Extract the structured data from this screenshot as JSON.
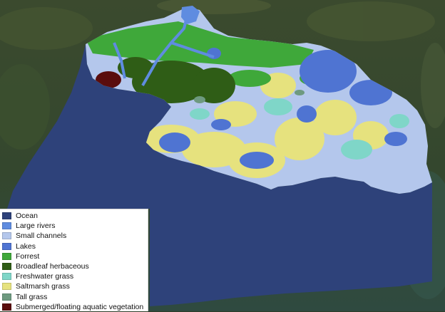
{
  "legend": {
    "items": [
      {
        "label": "Ocean",
        "color": "#2e427a"
      },
      {
        "label": "Large rivers",
        "color": "#5f8ce0"
      },
      {
        "label": "Small channels",
        "color": "#b4c7ec"
      },
      {
        "label": "Lakes",
        "color": "#4f74d2"
      },
      {
        "label": "Forrest",
        "color": "#3fa83a"
      },
      {
        "label": "Broadleaf herbaceous",
        "color": "#2f5d16"
      },
      {
        "label": "Freshwater grass",
        "color": "#7fd6c8"
      },
      {
        "label": "Saltmarsh grass",
        "color": "#e6e27e"
      },
      {
        "label": "Tall grass",
        "color": "#6e9a80"
      },
      {
        "label": "Submerged/floating aquatic vegetation",
        "color": "#5a0d0d"
      }
    ]
  }
}
